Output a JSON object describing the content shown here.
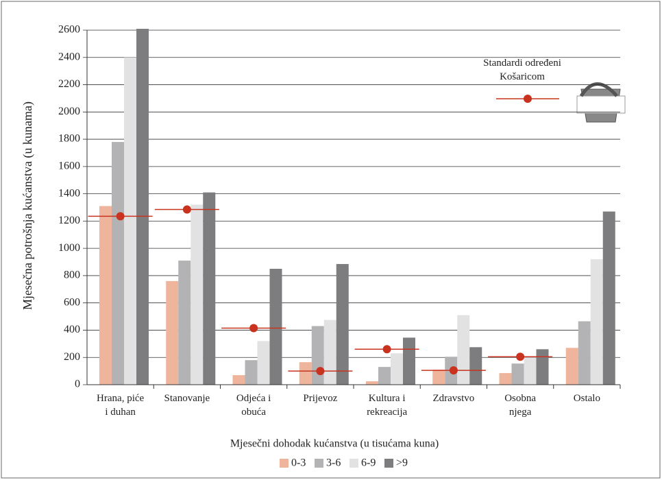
{
  "chart_data": {
    "type": "bar",
    "y_label": "Mjesečna potrošnja kućanstva (u kunama)",
    "x_label": "Mjesečni dohodak kućanstva (u tisućama kuna)",
    "categories": [
      "Hrana, piće\ni duhan",
      "Stanovanje",
      "Odjeća i\nobuća",
      "Prijevoz",
      "Kultura i\nrekreacija",
      "Zdravstvo",
      "Osobna\nnjega",
      "Ostalo"
    ],
    "series": [
      {
        "name": "0-3",
        "color": "#efb49c",
        "values": [
          1310,
          760,
          70,
          165,
          25,
          110,
          85,
          270
        ]
      },
      {
        "name": "3-6",
        "color": "#b3b3b5",
        "values": [
          1780,
          910,
          180,
          430,
          130,
          205,
          155,
          465
        ]
      },
      {
        "name": "6-9",
        "color": "#e2e2e3",
        "values": [
          2400,
          1320,
          320,
          475,
          230,
          510,
          200,
          920
        ]
      },
      {
        "name": ">9",
        "color": "#7d7d80",
        "values": [
          2610,
          1410,
          850,
          885,
          345,
          275,
          260,
          1270
        ]
      }
    ],
    "standard": {
      "name": "Standardi određeni\nKošaricom",
      "color": "#c8321e",
      "values": [
        1235,
        1285,
        415,
        100,
        260,
        105,
        205,
        null
      ]
    },
    "ylim": [
      0,
      2600
    ],
    "yticks": [
      0,
      200,
      400,
      600,
      800,
      1000,
      1200,
      1400,
      1600,
      1800,
      2000,
      2200,
      2400,
      2600
    ],
    "grid": true
  }
}
